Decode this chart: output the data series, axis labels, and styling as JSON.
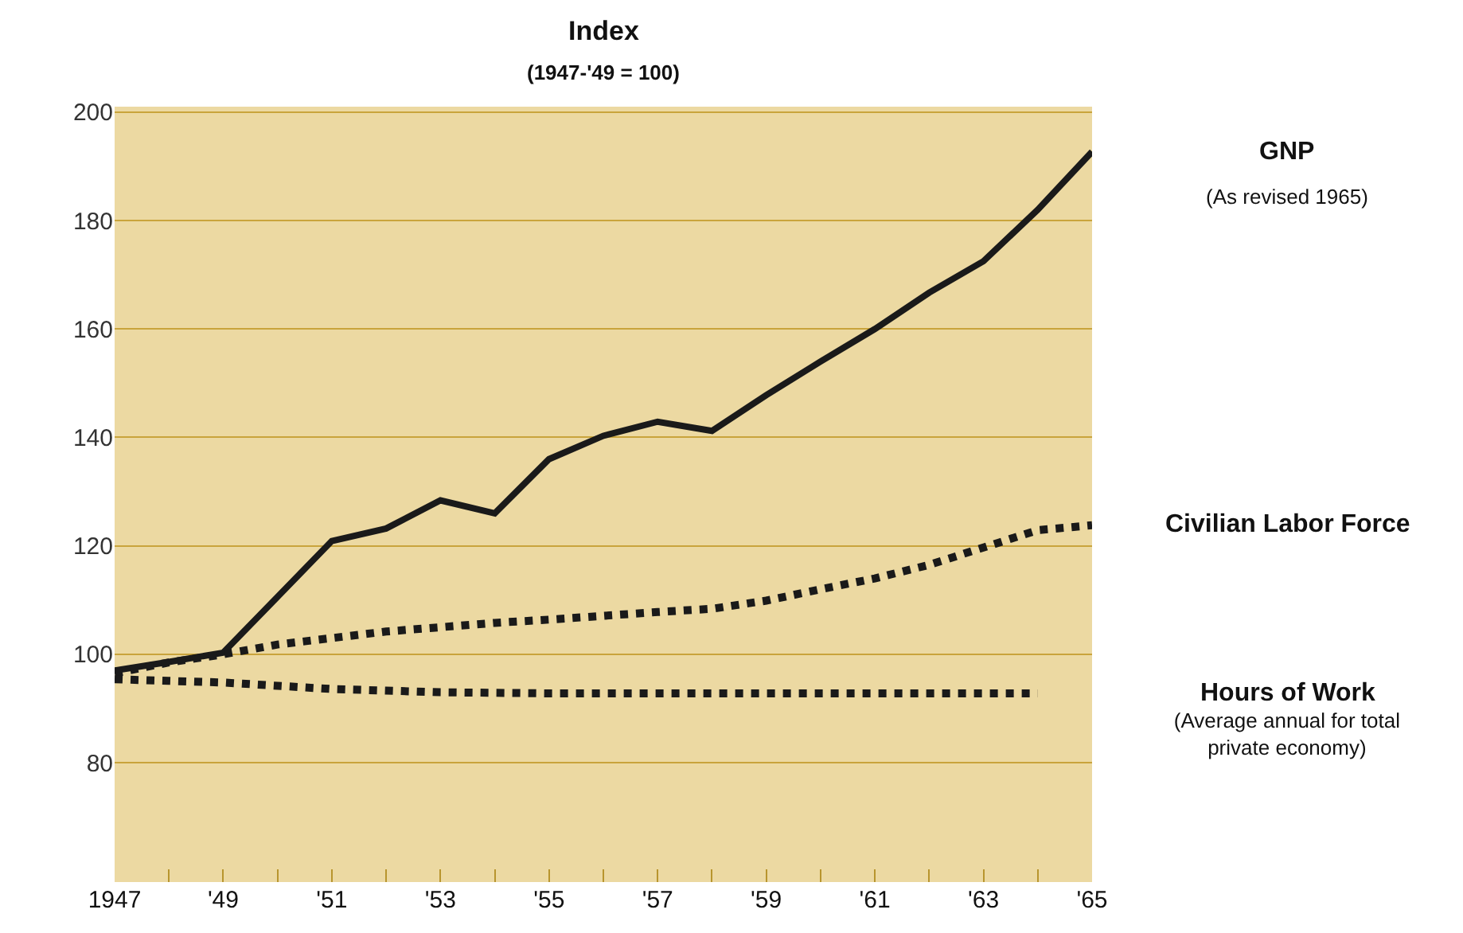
{
  "chart_data": {
    "type": "line",
    "title": "Index",
    "subtitle": "(1947-'49 = 100)",
    "x": [
      1947,
      1948,
      1949,
      1950,
      1951,
      1952,
      1953,
      1954,
      1955,
      1956,
      1957,
      1958,
      1959,
      1960,
      1961,
      1962,
      1963,
      1964,
      1965
    ],
    "series": [
      {
        "name": "GNP",
        "color": "#1a1a1a",
        "line_style": "solid",
        "values": [
          97,
          98.6,
          100.3,
          110.6,
          120.9,
          123.2,
          128.4,
          126,
          136,
          140.3,
          142.9,
          141.2,
          147.8,
          154,
          160,
          166.7,
          172.5,
          182,
          192.7
        ]
      },
      {
        "name": "Civilian Labor Force",
        "color": "#1a1a1a",
        "line_style": "dotted",
        "values": [
          96.5,
          98.5,
          100,
          101.8,
          103,
          104.2,
          105,
          105.8,
          106.4,
          107.1,
          107.8,
          108.4,
          109.9,
          112,
          114,
          116.5,
          119.7,
          122.9,
          123.8
        ]
      },
      {
        "name": "Hours of Work",
        "color": "#1a1a1a",
        "line_style": "dotted",
        "values": [
          95.4,
          95.1,
          94.8,
          94.2,
          93.6,
          93.3,
          93,
          92.9,
          92.8,
          92.8,
          92.8,
          92.8,
          92.8,
          92.8,
          92.8,
          92.8,
          92.8,
          92.8,
          null
        ]
      }
    ],
    "annotations": [
      "(As revised 1965)",
      "(Average annual for total private economy)"
    ],
    "xlim": [
      1947,
      1965
    ],
    "xticks": [
      {
        "value": 1947,
        "label": "1947"
      },
      {
        "value": 1948,
        "label": null
      },
      {
        "value": 1949,
        "label": "'49"
      },
      {
        "value": 1950,
        "label": null
      },
      {
        "value": 1951,
        "label": "'51"
      },
      {
        "value": 1952,
        "label": null
      },
      {
        "value": 1953,
        "label": "'53"
      },
      {
        "value": 1954,
        "label": null
      },
      {
        "value": 1955,
        "label": "'55"
      },
      {
        "value": 1956,
        "label": null
      },
      {
        "value": 1957,
        "label": "'57"
      },
      {
        "value": 1958,
        "label": null
      },
      {
        "value": 1959,
        "label": "'59"
      },
      {
        "value": 1960,
        "label": null
      },
      {
        "value": 1961,
        "label": "'61"
      },
      {
        "value": 1962,
        "label": null
      },
      {
        "value": 1963,
        "label": "'63"
      },
      {
        "value": 1964,
        "label": null
      },
      {
        "value": 1965,
        "label": "'65"
      }
    ],
    "ylim": [
      58,
      201
    ],
    "yticks": [
      80,
      100,
      120,
      140,
      160,
      180,
      200
    ],
    "grid": "y",
    "legend": false,
    "marker": "none"
  }
}
